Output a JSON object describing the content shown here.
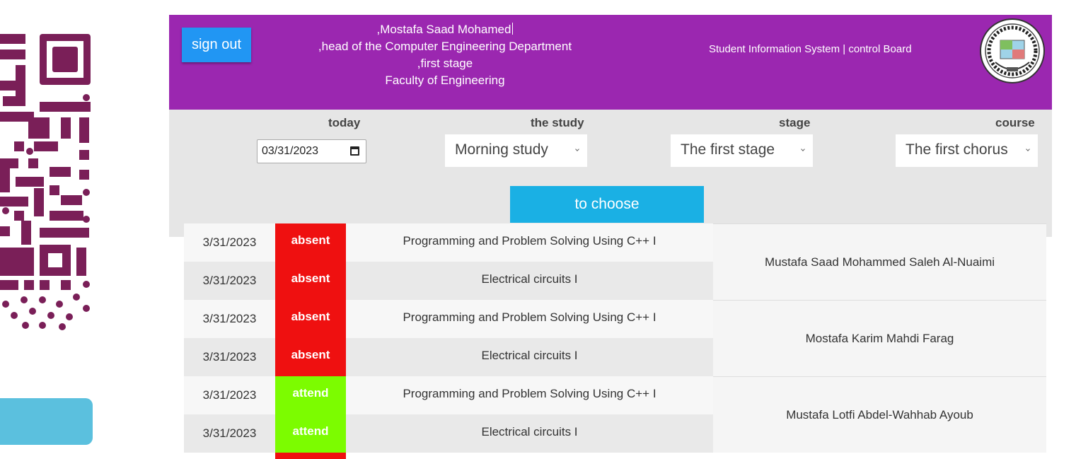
{
  "header": {
    "signout_label": "sign out",
    "user_lines": [
      ",Mostafa Saad Mohamed",
      ",head of the Computer Engineering Department",
      ",first stage",
      "Faculty of Engineering"
    ],
    "system_title": "Student Information System | control Board"
  },
  "filters": {
    "today_label": "today",
    "date_value": "03/31/2023",
    "study_label": "the study",
    "study_value": "Morning study",
    "stage_label": "stage",
    "stage_value": "The first stage",
    "course_label": "course",
    "course_value": "The first chorus",
    "choose_label": "to choose"
  },
  "records": [
    {
      "date": "3/31/2023",
      "status": "absent",
      "course": "Programming and Problem Solving Using C++ I"
    },
    {
      "date": "3/31/2023",
      "status": "absent",
      "course": "Electrical circuits I"
    },
    {
      "date": "3/31/2023",
      "status": "absent",
      "course": "Programming and Problem Solving Using C++ I"
    },
    {
      "date": "3/31/2023",
      "status": "absent",
      "course": "Electrical circuits I"
    },
    {
      "date": "3/31/2023",
      "status": "attend",
      "course": "Programming and Problem Solving Using C++ I"
    },
    {
      "date": "3/31/2023",
      "status": "attend",
      "course": "Electrical circuits I"
    }
  ],
  "students": [
    {
      "name": "Mustafa Saad Mohammed Saleh Al-Nuaimi"
    },
    {
      "name": "Mostafa Karim Mahdi Farag"
    },
    {
      "name": "Mustafa Lotfi Abdel-Wahhab Ayoub"
    }
  ],
  "colors": {
    "header_bg": "#9b27b0",
    "signout_bg": "#2196f3",
    "choose_bg": "#1ab0e4",
    "absent": "#ef1010",
    "attend": "#7cfc00",
    "qr": "#7a1f58"
  },
  "icons": [
    "qr-code-icon",
    "calendar-icon",
    "university-logo-icon"
  ]
}
